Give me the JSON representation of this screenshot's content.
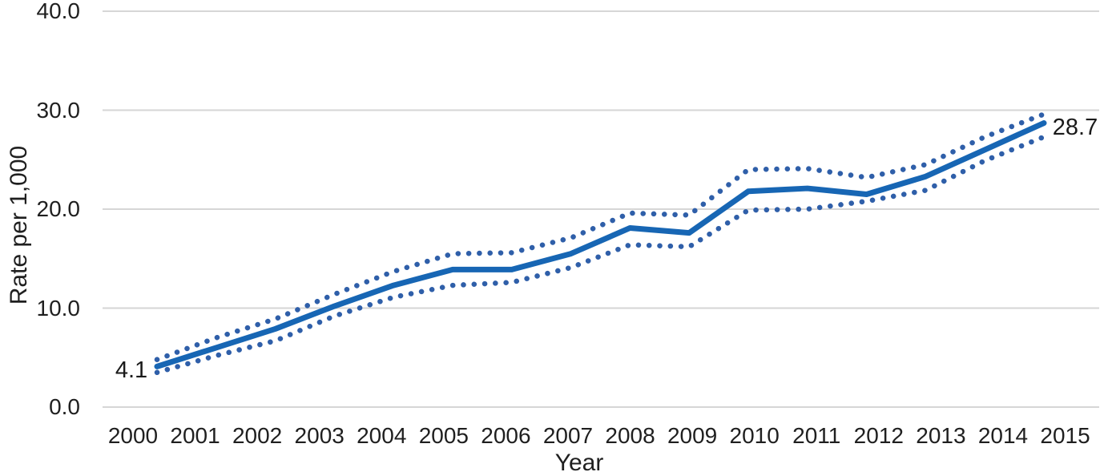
{
  "colors": {
    "solid_line": "#1766B4",
    "dotted_line": "#2F5FA9",
    "gridline": "#D6D6D6",
    "text": "#1F1F1F",
    "background": "#FFFFFF"
  },
  "chart_data": {
    "type": "line",
    "title": "",
    "xlabel": "Year",
    "ylabel": "Rate per 1,000",
    "x": [
      2000,
      2001,
      2002,
      2003,
      2004,
      2005,
      2006,
      2007,
      2008,
      2009,
      2010,
      2011,
      2012,
      2013,
      2014,
      2015
    ],
    "xtick_labels": [
      "2000",
      "2001",
      "2002",
      "2003",
      "2004",
      "2005",
      "2006",
      "2007",
      "2008",
      "2009",
      "2010",
      "2011",
      "2012",
      "2013",
      "2014",
      "2015"
    ],
    "series": [
      {
        "name": "rate",
        "style": "solid",
        "color": "#1766B4",
        "values": [
          4.1,
          6.0,
          7.9,
          10.2,
          12.3,
          13.9,
          13.9,
          15.5,
          18.1,
          17.6,
          21.8,
          22.1,
          21.5,
          23.3,
          26.0,
          28.7
        ]
      },
      {
        "name": "upper-confidence-band",
        "style": "dotted",
        "color": "#2F5FA9",
        "values": [
          4.8,
          7.0,
          8.9,
          11.4,
          13.7,
          15.5,
          15.6,
          17.1,
          19.6,
          19.4,
          24.0,
          24.1,
          23.2,
          24.5,
          27.3,
          29.6
        ]
      },
      {
        "name": "lower-confidence-band",
        "style": "dotted",
        "color": "#2F5FA9",
        "values": [
          3.5,
          5.2,
          6.7,
          9.2,
          11.1,
          12.3,
          12.6,
          14.1,
          16.4,
          16.2,
          19.9,
          20.0,
          20.8,
          21.9,
          24.9,
          27.3
        ]
      }
    ],
    "ylim": [
      0,
      40
    ],
    "ytick_labels": [
      "0.0",
      "10.0",
      "20.0",
      "30.0",
      "40.0"
    ],
    "ytick_values": [
      0,
      10,
      20,
      30,
      40
    ],
    "grid": "horizontal",
    "legend": "none",
    "annotations": [
      {
        "text": "4.1",
        "series": "rate",
        "index": 0,
        "position": "left",
        "background": "none"
      },
      {
        "text": "28.7",
        "series": "rate",
        "index": 15,
        "position": "right",
        "background": "#FFFFFF"
      }
    ]
  }
}
